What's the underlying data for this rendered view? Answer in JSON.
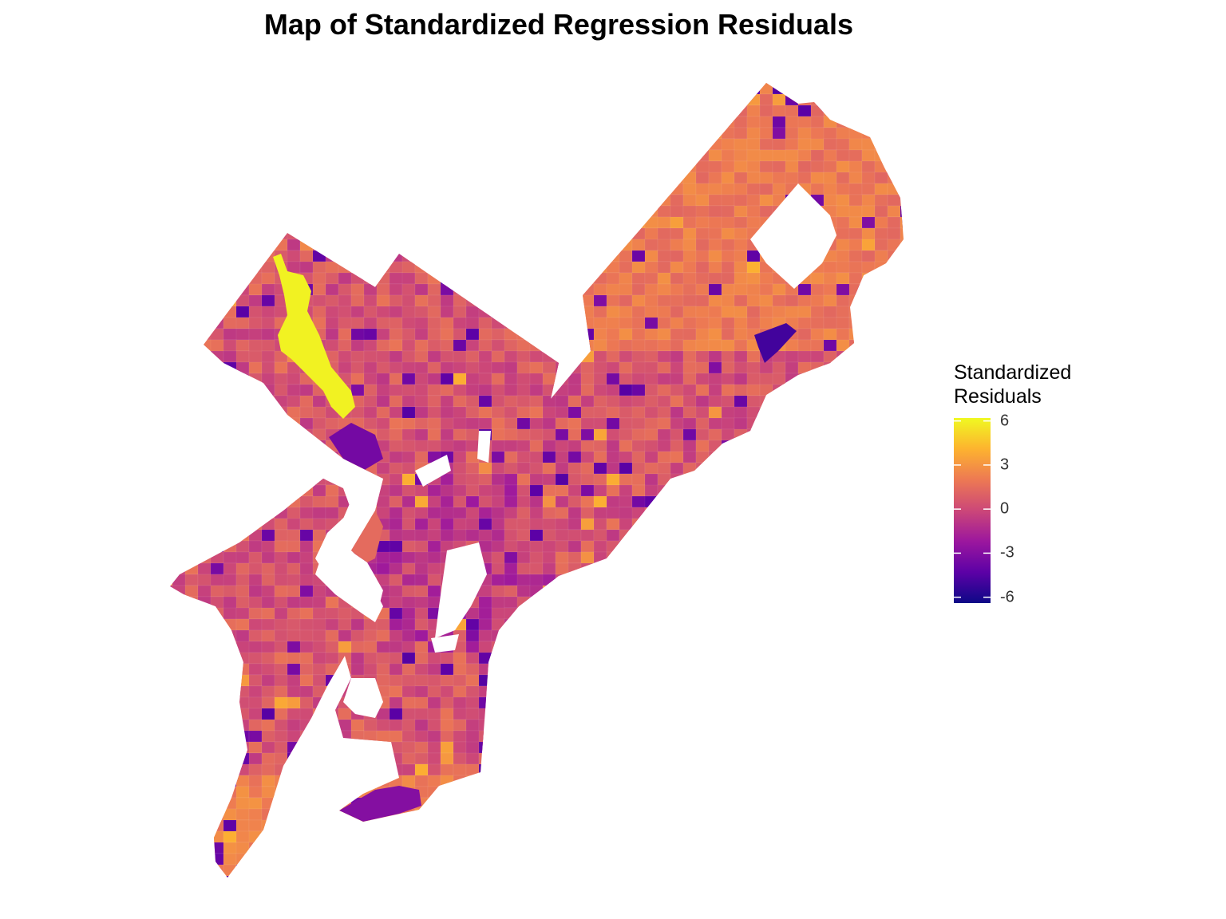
{
  "title": "Map of Standardized Regression Residuals",
  "legend": {
    "title_line1": "Standardized",
    "title_line2": "Residuals",
    "ticks": [
      6,
      3,
      0,
      -3,
      -6
    ],
    "tick_labels": [
      "6",
      "3",
      "0",
      "-3",
      "-6"
    ],
    "range": [
      -6.4,
      6.2
    ]
  },
  "colormap": {
    "name": "plasma",
    "stops": [
      "#0d0887",
      "#5c01a6",
      "#9c179e",
      "#cc4778",
      "#ed7953",
      "#fdb32f",
      "#f0f921"
    ]
  },
  "map_layer": {
    "type": "choropleth",
    "variable": "standardized residuals",
    "highlighted_values": {
      "wissahickon_corridor": 6,
      "northeast_pocket": -5,
      "southwest_rivers": -3.5,
      "south_navy_yard": -3
    }
  }
}
